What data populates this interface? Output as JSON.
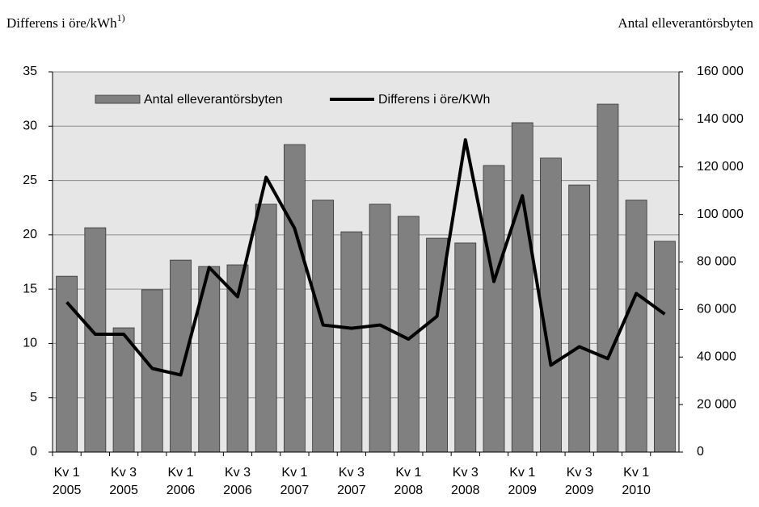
{
  "chart_data": {
    "type": "bar_line",
    "ylabel": "Differens i öre/kWh",
    "ylabel_note": "1)",
    "y2label": "Antal elleverantörsbyten",
    "categories": [
      "Kv 1\n2005",
      null,
      "Kv 3\n2005",
      null,
      "Kv 1\n2006",
      null,
      "Kv 3\n2006",
      null,
      "Kv 1\n2007",
      null,
      "Kv 3\n2007",
      null,
      "Kv 1\n2008",
      null,
      "Kv 3\n2008",
      null,
      "Kv 1\n2009",
      null,
      "Kv 3\n2009",
      null,
      "Kv 1\n2010",
      null
    ],
    "series": [
      {
        "name": "Antal elleverantörsbyten",
        "kind": "bar",
        "axis": "y2",
        "color": "#808080",
        "values": [
          74000,
          94400,
          52300,
          68300,
          80800,
          78100,
          78800,
          104300,
          129400,
          106000,
          92700,
          104300,
          99200,
          90000,
          88000,
          120600,
          138600,
          123700,
          112400,
          146400,
          106000,
          88700
        ]
      },
      {
        "name": "Differens i öre/KWh",
        "kind": "line",
        "color": "#000000",
        "values": [
          13.8,
          10.85,
          10.85,
          7.7,
          7.1,
          17.0,
          14.3,
          25.3,
          20.6,
          11.7,
          11.4,
          11.7,
          10.4,
          12.5,
          28.75,
          15.7,
          23.6,
          8.0,
          9.7,
          8.6,
          14.6,
          12.7
        ]
      }
    ],
    "ylim": [
      0,
      35
    ],
    "yticks": [
      0,
      5,
      10,
      15,
      20,
      25,
      30,
      35
    ],
    "y2lim": [
      0,
      160000
    ],
    "y2ticks": [
      0,
      {
        "value": 20000,
        "label": "20 000"
      },
      {
        "value": 40000,
        "label": "40 000"
      },
      {
        "value": 60000,
        "label": "60 000"
      },
      {
        "value": 80000,
        "label": "80 000"
      },
      {
        "value": 100000,
        "label": "100 000"
      },
      {
        "value": 120000,
        "label": "120 000"
      },
      {
        "value": 140000,
        "label": "140 000"
      },
      {
        "value": 160000,
        "label": "160 000"
      }
    ],
    "grid": true
  }
}
